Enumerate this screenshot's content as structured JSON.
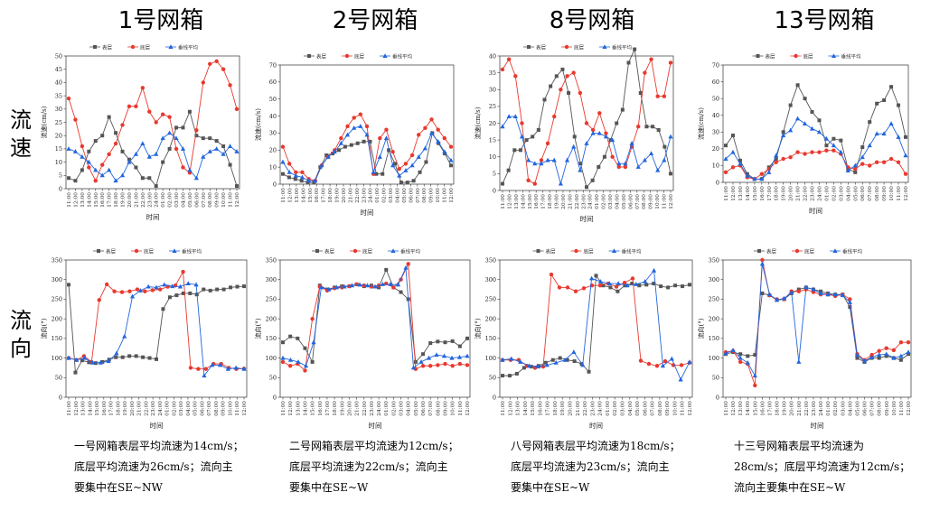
{
  "row_labels": {
    "speed": "流速",
    "direction": "流向"
  },
  "legend": [
    "表层",
    "底层",
    "垂线平均"
  ],
  "colors": {
    "surface": "#555555",
    "bottom": "#e8392f",
    "mean": "#2266dd"
  },
  "x_axis_title": "时间",
  "y_axis_titles": {
    "speed": "流速(cm/s)",
    "direction": "流向(°)"
  },
  "time_labels": [
    "11:00",
    "12:00",
    "13:00",
    "14:00",
    "15:00",
    "16:00",
    "17:00",
    "18:00",
    "19:00",
    "20:00",
    "21:00",
    "22:00",
    "23:00",
    "24:00",
    "01:00",
    "02:00",
    "03:00",
    "04:00",
    "05:00",
    "06:00",
    "07:00",
    "08:00",
    "09:00",
    "10:00",
    "11:00",
    "12:00"
  ],
  "panels": [
    {
      "title": "1号网箱",
      "note_lines": [
        "一号网箱表层平均流速为14cm/s；",
        "底层平均流速为26cm/s；流向主",
        "要集中在SE~NW"
      ]
    },
    {
      "title": "2号网箱",
      "note_lines": [
        "二号网箱表层平均流速为12cm/s；",
        "底层平均流速为22cm/s；流向主",
        "要集中在SE~W"
      ]
    },
    {
      "title": "8号网箱",
      "note_lines": [
        "八号网箱表层平均流速为18cm/s；",
        "底层平均流速为23cm/s；流向主",
        "要集中在SE~W"
      ]
    },
    {
      "title": "13号网箱",
      "note_lines": [
        "十三号网箱表层平均流速为",
        "28cm/s；底层平均流速为12cm/s；",
        "流向主要集中在SE~W"
      ]
    }
  ],
  "chart_data": [
    {
      "type": "line",
      "panel": "1号网箱",
      "metric": "流速",
      "xlabel": "时间",
      "ylabel": "流速(cm/s)",
      "ylim": [
        0,
        50
      ],
      "yticks": [
        0,
        5,
        10,
        15,
        20,
        25,
        30,
        35,
        40,
        45,
        50
      ],
      "series": [
        {
          "name": "表层",
          "values": [
            4,
            3,
            7,
            14,
            18,
            20,
            27,
            21,
            14,
            11,
            8,
            4,
            4,
            1,
            10,
            15,
            23,
            23,
            29,
            20,
            19,
            19,
            18,
            16,
            9,
            1
          ]
        },
        {
          "name": "底层",
          "values": [
            34,
            26,
            16,
            8,
            3,
            9,
            13,
            17,
            24,
            31,
            31,
            38,
            29,
            25,
            28,
            27,
            15,
            8,
            6,
            22,
            40,
            47,
            48,
            45,
            39,
            30
          ]
        },
        {
          "name": "垂线平均",
          "values": [
            15,
            14,
            12,
            10,
            7,
            5,
            7,
            3,
            5,
            10,
            13,
            17,
            12,
            13,
            19,
            21,
            19,
            15,
            7,
            4,
            12,
            14,
            15,
            13,
            16,
            14
          ]
        }
      ]
    },
    {
      "type": "line",
      "panel": "2号网箱",
      "metric": "流速",
      "xlabel": "时间",
      "ylabel": "流速(cm/s)",
      "ylim": [
        0,
        70
      ],
      "yticks": [
        0,
        10,
        20,
        30,
        40,
        50,
        60,
        70
      ],
      "series": [
        {
          "name": "表层",
          "values": [
            6,
            4,
            3,
            2,
            1,
            1,
            10,
            17,
            18,
            20,
            22,
            23,
            24,
            25,
            25,
            6,
            6,
            20,
            12,
            1,
            1,
            2,
            7,
            13,
            30,
            24,
            18,
            11
          ]
        },
        {
          "name": "底层",
          "values": [
            22,
            12,
            7,
            7,
            3,
            2,
            11,
            16,
            20,
            27,
            34,
            39,
            41,
            34,
            6,
            27,
            32,
            19,
            9,
            12,
            17,
            29,
            33,
            38,
            32,
            27,
            22
          ]
        },
        {
          "name": "垂线平均",
          "values": [
            13,
            7,
            5,
            4,
            2,
            2,
            11,
            16,
            19,
            24,
            29,
            33,
            34,
            29,
            7,
            16,
            27,
            11,
            5,
            8,
            11,
            16,
            21,
            30,
            25,
            19,
            14
          ]
        }
      ]
    },
    {
      "type": "line",
      "panel": "8号网箱",
      "metric": "流速",
      "xlabel": "时间",
      "ylabel": "流速(cm/s)",
      "ylim": [
        0,
        40
      ],
      "yticks": [
        0,
        5,
        10,
        15,
        20,
        25,
        30,
        35,
        40
      ],
      "series": [
        {
          "name": "表层",
          "values": [
            2,
            6,
            12,
            12,
            15,
            16,
            18,
            27,
            31,
            34,
            36,
            29,
            16,
            8,
            1,
            3,
            7,
            10,
            15,
            20,
            24,
            38,
            42,
            29,
            19,
            19,
            18,
            13,
            5
          ]
        },
        {
          "name": "底层",
          "values": [
            36,
            39,
            34,
            20,
            3,
            2,
            9,
            14,
            22,
            30,
            34,
            35,
            29,
            20,
            18,
            23,
            17,
            10,
            7,
            7,
            13,
            19,
            35,
            39,
            28,
            28,
            38
          ]
        },
        {
          "name": "垂线平均",
          "values": [
            19,
            22,
            22,
            16,
            9,
            8,
            8,
            9,
            9,
            2,
            9,
            13,
            6,
            14,
            17,
            17,
            16,
            15,
            8,
            8,
            14,
            7,
            9,
            11,
            6,
            9,
            16
          ]
        }
      ]
    },
    {
      "type": "line",
      "panel": "13号网箱",
      "metric": "流速",
      "xlabel": "时间",
      "ylabel": "流速(cm/s)",
      "ylim": [
        0,
        70
      ],
      "yticks": [
        0,
        10,
        20,
        30,
        40,
        50,
        60,
        70
      ],
      "series": [
        {
          "name": "表层",
          "values": [
            22,
            28,
            13,
            5,
            2,
            2,
            9,
            14,
            30,
            46,
            58,
            50,
            42,
            37,
            22,
            26,
            25,
            8,
            6,
            21,
            36,
            47,
            49,
            57,
            46,
            27
          ]
        },
        {
          "name": "底层",
          "values": [
            6,
            9,
            10,
            3,
            2,
            5,
            8,
            12,
            14,
            15,
            18,
            17,
            18,
            18,
            19,
            19,
            17,
            9,
            8,
            11,
            10,
            12,
            12,
            14,
            12,
            5
          ]
        },
        {
          "name": "垂线平均",
          "values": [
            14,
            18,
            11,
            4,
            2,
            2,
            6,
            16,
            28,
            31,
            38,
            35,
            32,
            30,
            26,
            22,
            18,
            7,
            10,
            15,
            22,
            29,
            29,
            35,
            27,
            16
          ]
        }
      ]
    },
    {
      "type": "line",
      "panel": "1号网箱",
      "metric": "流向",
      "xlabel": "时间",
      "ylabel": "流向(°)",
      "ylim": [
        0,
        350
      ],
      "yticks": [
        0,
        50,
        100,
        150,
        200,
        250,
        300,
        350
      ],
      "series": [
        {
          "name": "表层",
          "values": [
            287,
            63,
            94,
            89,
            87,
            90,
            96,
            102,
            102,
            105,
            105,
            102,
            100,
            97,
            225,
            255,
            260,
            265,
            265,
            262,
            275,
            272,
            275,
            275,
            280,
            282,
            283
          ]
        },
        {
          "name": "底层",
          "values": [
            100,
            95,
            105,
            90,
            248,
            288,
            270,
            268,
            270,
            275,
            270,
            273,
            275,
            282,
            285,
            320,
            75,
            72,
            72,
            85,
            85,
            75,
            72,
            73
          ]
        },
        {
          "name": "垂线平均",
          "values": [
            100,
            95,
            100,
            88,
            88,
            92,
            112,
            155,
            257,
            272,
            282,
            280,
            287,
            283,
            282,
            290,
            287,
            55,
            82,
            82,
            72,
            75,
            72
          ]
        }
      ]
    },
    {
      "type": "line",
      "panel": "2号网箱",
      "metric": "流向",
      "xlabel": "时间",
      "ylabel": "流向(°)",
      "ylim": [
        0,
        350
      ],
      "yticks": [
        0,
        50,
        100,
        150,
        200,
        250,
        300,
        350
      ],
      "series": [
        {
          "name": "表层",
          "values": [
            140,
            155,
            150,
            125,
            90,
            285,
            275,
            280,
            283,
            283,
            288,
            283,
            285,
            280,
            325,
            280,
            268,
            250,
            90,
            110,
            138,
            142,
            140,
            143,
            130,
            150
          ]
        },
        {
          "name": "底层",
          "values": [
            90,
            80,
            85,
            68,
            200,
            282,
            272,
            278,
            280,
            283,
            288,
            285,
            282,
            285,
            290,
            280,
            300,
            340,
            72,
            80,
            80,
            82,
            85,
            80,
            85,
            82
          ]
        },
        {
          "name": "垂线平均",
          "values": [
            100,
            95,
            90,
            80,
            140,
            280,
            275,
            280,
            282,
            285,
            287,
            285,
            282,
            288,
            288,
            287,
            330,
            75,
            90,
            100,
            108,
            105,
            100,
            102,
            105
          ]
        }
      ]
    },
    {
      "type": "line",
      "panel": "8号网箱",
      "metric": "流向",
      "xlabel": "时间",
      "ylabel": "流向(°)",
      "ylim": [
        0,
        350
      ],
      "yticks": [
        0,
        50,
        100,
        150,
        200,
        250,
        300,
        350
      ],
      "series": [
        {
          "name": "表层",
          "values": [
            55,
            55,
            60,
            75,
            78,
            80,
            88,
            95,
            100,
            95,
            92,
            85,
            65,
            310,
            285,
            280,
            270,
            285,
            290,
            285,
            287,
            290,
            283,
            280,
            285,
            283,
            287
          ]
        },
        {
          "name": "底层",
          "values": [
            95,
            95,
            95,
            80,
            75,
            78,
            313,
            280,
            280,
            270,
            278,
            285,
            285,
            290,
            282,
            292,
            303,
            93,
            85,
            80,
            92,
            82,
            82,
            88
          ]
        },
        {
          "name": "垂线平均",
          "values": [
            95,
            98,
            90,
            80,
            78,
            82,
            88,
            95,
            115,
            82,
            303,
            295,
            290,
            290,
            285,
            288,
            295,
            323,
            80,
            98,
            45,
            90
          ]
        }
      ]
    },
    {
      "type": "line",
      "panel": "13号网箱",
      "metric": "流向",
      "xlabel": "时间",
      "ylabel": "流向(°)",
      "ylim": [
        0,
        350
      ],
      "yticks": [
        0,
        50,
        100,
        150,
        200,
        250,
        300,
        350
      ],
      "series": [
        {
          "name": "表层",
          "values": [
            110,
            115,
            110,
            105,
            108,
            265,
            260,
            248,
            250,
            265,
            275,
            280,
            275,
            270,
            265,
            262,
            262,
            230,
            100,
            90,
            100,
            100,
            105,
            100,
            95,
            110
          ]
        },
        {
          "name": "底层",
          "values": [
            115,
            118,
            90,
            85,
            30,
            350,
            260,
            250,
            250,
            270,
            270,
            275,
            268,
            262,
            262,
            258,
            262,
            250,
            110,
            95,
            108,
            118,
            125,
            120,
            140,
            140
          ]
        },
        {
          "name": "垂线平均",
          "values": [
            112,
            120,
            100,
            88,
            55,
            340,
            262,
            248,
            252,
            268,
            90,
            280,
            275,
            265,
            262,
            262,
            260,
            242,
            108,
            92,
            102,
            108,
            110,
            100,
            105,
            115
          ]
        }
      ]
    }
  ]
}
